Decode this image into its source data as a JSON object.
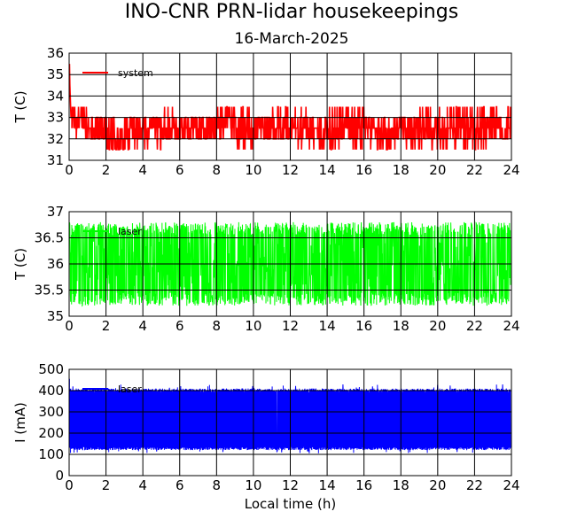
{
  "title": "INO-CNR PRN-lidar housekeepings",
  "subtitle": "16-March-2025",
  "chart_data": [
    {
      "type": "line",
      "panel": "top",
      "ylabel": "T (C)",
      "xlabel": "",
      "xlim": [
        0,
        24
      ],
      "ylim": [
        31,
        36
      ],
      "xticks": [
        0,
        2,
        4,
        6,
        8,
        10,
        12,
        14,
        16,
        18,
        20,
        22,
        24
      ],
      "yticks": [
        31,
        32,
        33,
        34,
        35,
        36
      ],
      "ytick_labels": [
        "31",
        "32",
        "33",
        "34",
        "35",
        "36"
      ],
      "grid": true,
      "legend_position": "top-left",
      "series": [
        {
          "name": "system",
          "color": "#ff0000",
          "quantization": 0.5,
          "startup": {
            "x": [
              0.0,
              0.02,
              0.04,
              0.06,
              0.08,
              0.1,
              0.15
            ],
            "values": [
              35.0,
              35.5,
              34.5,
              34.0,
              33.5,
              33.0,
              33.0
            ]
          },
          "typical_range": [
            31.5,
            33.5
          ],
          "hourly_mean": [
            33.0,
            32.5,
            32.0,
            32.5,
            32.5,
            32.5,
            32.5,
            32.5,
            33.0,
            32.5,
            32.5,
            32.5,
            32.5,
            32.5,
            32.5,
            32.5,
            32.5,
            32.5,
            32.5,
            32.5,
            32.5,
            32.5,
            32.5,
            32.5,
            32.5
          ],
          "hourly_max": [
            33.5,
            33.0,
            33.0,
            33.0,
            33.0,
            33.5,
            33.0,
            33.0,
            33.5,
            33.5,
            33.0,
            33.5,
            33.5,
            33.0,
            33.5,
            33.5,
            33.0,
            33.0,
            33.0,
            33.5,
            33.5,
            33.5,
            33.5,
            33.5,
            33.5
          ],
          "hourly_min": [
            32.0,
            32.0,
            31.5,
            31.5,
            31.5,
            32.0,
            32.0,
            32.0,
            32.0,
            31.5,
            32.0,
            32.0,
            31.5,
            31.5,
            31.5,
            31.5,
            31.5,
            31.5,
            31.5,
            31.5,
            31.5,
            31.5,
            31.5,
            32.0,
            32.0
          ]
        }
      ]
    },
    {
      "type": "line",
      "panel": "middle",
      "ylabel": "T (C)",
      "xlabel": "",
      "xlim": [
        0,
        24
      ],
      "ylim": [
        35,
        37
      ],
      "xticks": [
        0,
        2,
        4,
        6,
        8,
        10,
        12,
        14,
        16,
        18,
        20,
        22,
        24
      ],
      "yticks": [
        35,
        35.5,
        36,
        36.5,
        37
      ],
      "ytick_labels": [
        "35",
        "35.5",
        "36",
        "36.5",
        "37"
      ],
      "grid": true,
      "legend_position": "top-left",
      "series": [
        {
          "name": "laser",
          "color": "#00ff00",
          "center": 36.0,
          "typical_range": [
            35.2,
            36.8
          ]
        }
      ]
    },
    {
      "type": "line",
      "panel": "bottom",
      "ylabel": "I (mA)",
      "xlabel": "Local time (h)",
      "xlim": [
        0,
        24
      ],
      "ylim": [
        0,
        500
      ],
      "xticks": [
        0,
        2,
        4,
        6,
        8,
        10,
        12,
        14,
        16,
        18,
        20,
        22,
        24
      ],
      "yticks": [
        0,
        100,
        200,
        300,
        400,
        500
      ],
      "ytick_labels": [
        "0",
        "100",
        "200",
        "300",
        "400",
        "500"
      ],
      "grid": true,
      "legend_position": "top-left",
      "series": [
        {
          "name": "laser",
          "color": "#0000ff",
          "typical_range": [
            120,
            410
          ],
          "extremes": [
            105,
            455
          ]
        }
      ]
    }
  ]
}
